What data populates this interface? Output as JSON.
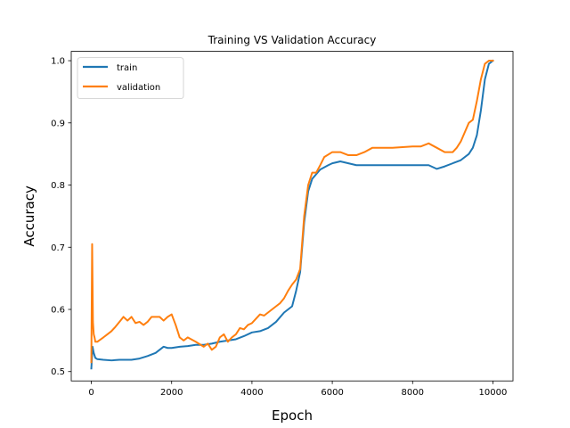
{
  "chart_data": {
    "type": "line",
    "title": "Training VS Validation Accuracy",
    "xlabel": "Epoch",
    "ylabel": "Accuracy",
    "xlim": [
      -500,
      10500
    ],
    "ylim": [
      0.485,
      1.015
    ],
    "xticks": [
      0,
      2000,
      4000,
      6000,
      8000,
      10000
    ],
    "yticks": [
      0.5,
      0.6,
      0.7,
      0.8,
      0.9,
      1.0
    ],
    "xtick_labels": [
      "0",
      "2000",
      "4000",
      "6000",
      "8000",
      "10000"
    ],
    "ytick_labels": [
      "0.5",
      "0.6",
      "0.7",
      "0.8",
      "0.9",
      "1.0"
    ],
    "grid": false,
    "legend_position": "upper-left",
    "series": [
      {
        "name": "train",
        "color": "#1f77b4",
        "x": [
          0,
          30,
          60,
          100,
          150,
          300,
          500,
          700,
          900,
          1000,
          1200,
          1400,
          1600,
          1700,
          1800,
          1900,
          2000,
          2200,
          2400,
          2600,
          2800,
          3000,
          3200,
          3400,
          3600,
          3800,
          4000,
          4200,
          4400,
          4600,
          4800,
          5000,
          5100,
          5200,
          5300,
          5400,
          5500,
          5700,
          5900,
          6000,
          6200,
          6400,
          6600,
          6800,
          7000,
          7500,
          8000,
          8400,
          8600,
          8800,
          9000,
          9200,
          9400,
          9500,
          9600,
          9700,
          9800,
          9900,
          10000
        ],
        "values": [
          0.505,
          0.54,
          0.53,
          0.522,
          0.52,
          0.519,
          0.518,
          0.519,
          0.519,
          0.519,
          0.521,
          0.525,
          0.53,
          0.535,
          0.54,
          0.538,
          0.538,
          0.54,
          0.541,
          0.543,
          0.543,
          0.545,
          0.548,
          0.55,
          0.552,
          0.557,
          0.563,
          0.565,
          0.57,
          0.58,
          0.595,
          0.605,
          0.63,
          0.66,
          0.74,
          0.79,
          0.81,
          0.825,
          0.832,
          0.835,
          0.838,
          0.835,
          0.832,
          0.832,
          0.832,
          0.832,
          0.832,
          0.832,
          0.826,
          0.83,
          0.835,
          0.84,
          0.85,
          0.86,
          0.88,
          0.92,
          0.97,
          0.995,
          1.0
        ]
      },
      {
        "name": "validation",
        "color": "#ff7f0e",
        "x": [
          0,
          20,
          40,
          60,
          80,
          100,
          150,
          300,
          400,
          500,
          600,
          700,
          800,
          900,
          1000,
          1100,
          1200,
          1300,
          1400,
          1500,
          1700,
          1800,
          1900,
          2000,
          2100,
          2200,
          2300,
          2400,
          2600,
          2800,
          2900,
          3000,
          3100,
          3200,
          3300,
          3400,
          3500,
          3600,
          3700,
          3800,
          3900,
          4000,
          4100,
          4200,
          4300,
          4400,
          4500,
          4600,
          4700,
          4800,
          4900,
          5000,
          5100,
          5200,
          5300,
          5400,
          5500,
          5600,
          5700,
          5800,
          6000,
          6200,
          6400,
          6600,
          6800,
          7000,
          7500,
          8000,
          8200,
          8400,
          8600,
          8800,
          9000,
          9100,
          9200,
          9300,
          9400,
          9500,
          9600,
          9700,
          9800,
          9900,
          10000
        ],
        "values": [
          0.515,
          0.705,
          0.58,
          0.56,
          0.555,
          0.548,
          0.548,
          0.555,
          0.56,
          0.565,
          0.572,
          0.58,
          0.588,
          0.582,
          0.588,
          0.578,
          0.58,
          0.575,
          0.58,
          0.588,
          0.588,
          0.582,
          0.588,
          0.592,
          0.575,
          0.555,
          0.55,
          0.555,
          0.548,
          0.54,
          0.545,
          0.535,
          0.54,
          0.555,
          0.56,
          0.548,
          0.555,
          0.56,
          0.57,
          0.568,
          0.575,
          0.578,
          0.585,
          0.592,
          0.59,
          0.595,
          0.6,
          0.605,
          0.61,
          0.618,
          0.63,
          0.64,
          0.648,
          0.665,
          0.75,
          0.8,
          0.82,
          0.82,
          0.832,
          0.845,
          0.853,
          0.853,
          0.848,
          0.848,
          0.853,
          0.86,
          0.86,
          0.862,
          0.862,
          0.867,
          0.86,
          0.853,
          0.853,
          0.86,
          0.87,
          0.885,
          0.9,
          0.905,
          0.935,
          0.97,
          0.995,
          1.0,
          1.0
        ]
      }
    ]
  }
}
